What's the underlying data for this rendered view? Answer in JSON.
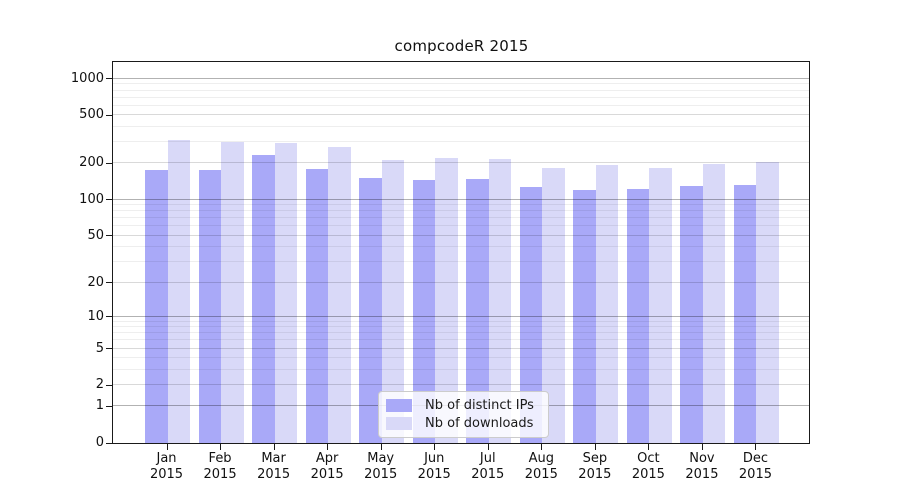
{
  "chart_data": {
    "type": "bar",
    "title": "compcodeR 2015",
    "categories": [
      "Jan",
      "Feb",
      "Mar",
      "Apr",
      "May",
      "Jun",
      "Jul",
      "Aug",
      "Sep",
      "Oct",
      "Nov",
      "Dec"
    ],
    "category_sub": "2015",
    "series": [
      {
        "name": "Nb of distinct IPs",
        "color": "#a9a9f8",
        "values": [
          175,
          175,
          234,
          181,
          151,
          147,
          150,
          127,
          121,
          124,
          129,
          132
        ]
      },
      {
        "name": "Nb of downloads",
        "color": "#d9d9f8",
        "values": [
          314,
          304,
          298,
          275,
          214,
          221,
          217,
          184,
          195,
          184,
          199,
          205
        ]
      }
    ],
    "yscale": "log10(v+1)",
    "yticks": [
      0,
      1,
      2,
      5,
      10,
      20,
      50,
      100,
      200,
      500,
      1000
    ],
    "ylim": [
      0,
      1377
    ],
    "grid": true,
    "legend_position": "lower center inside",
    "xlabel": "",
    "ylabel": ""
  },
  "colors": {
    "background": "#ffffff",
    "spine": "#1a1a1a",
    "grid_major": "rgba(0,0,0,0.30)",
    "grid_mid": "rgba(0,0,0,0.15)",
    "grid_minor": "rgba(0,0,0,0.065)",
    "text": "#111111",
    "legend_border": "#cccccc",
    "legend_bg": "rgba(255,255,255,0.8)"
  }
}
